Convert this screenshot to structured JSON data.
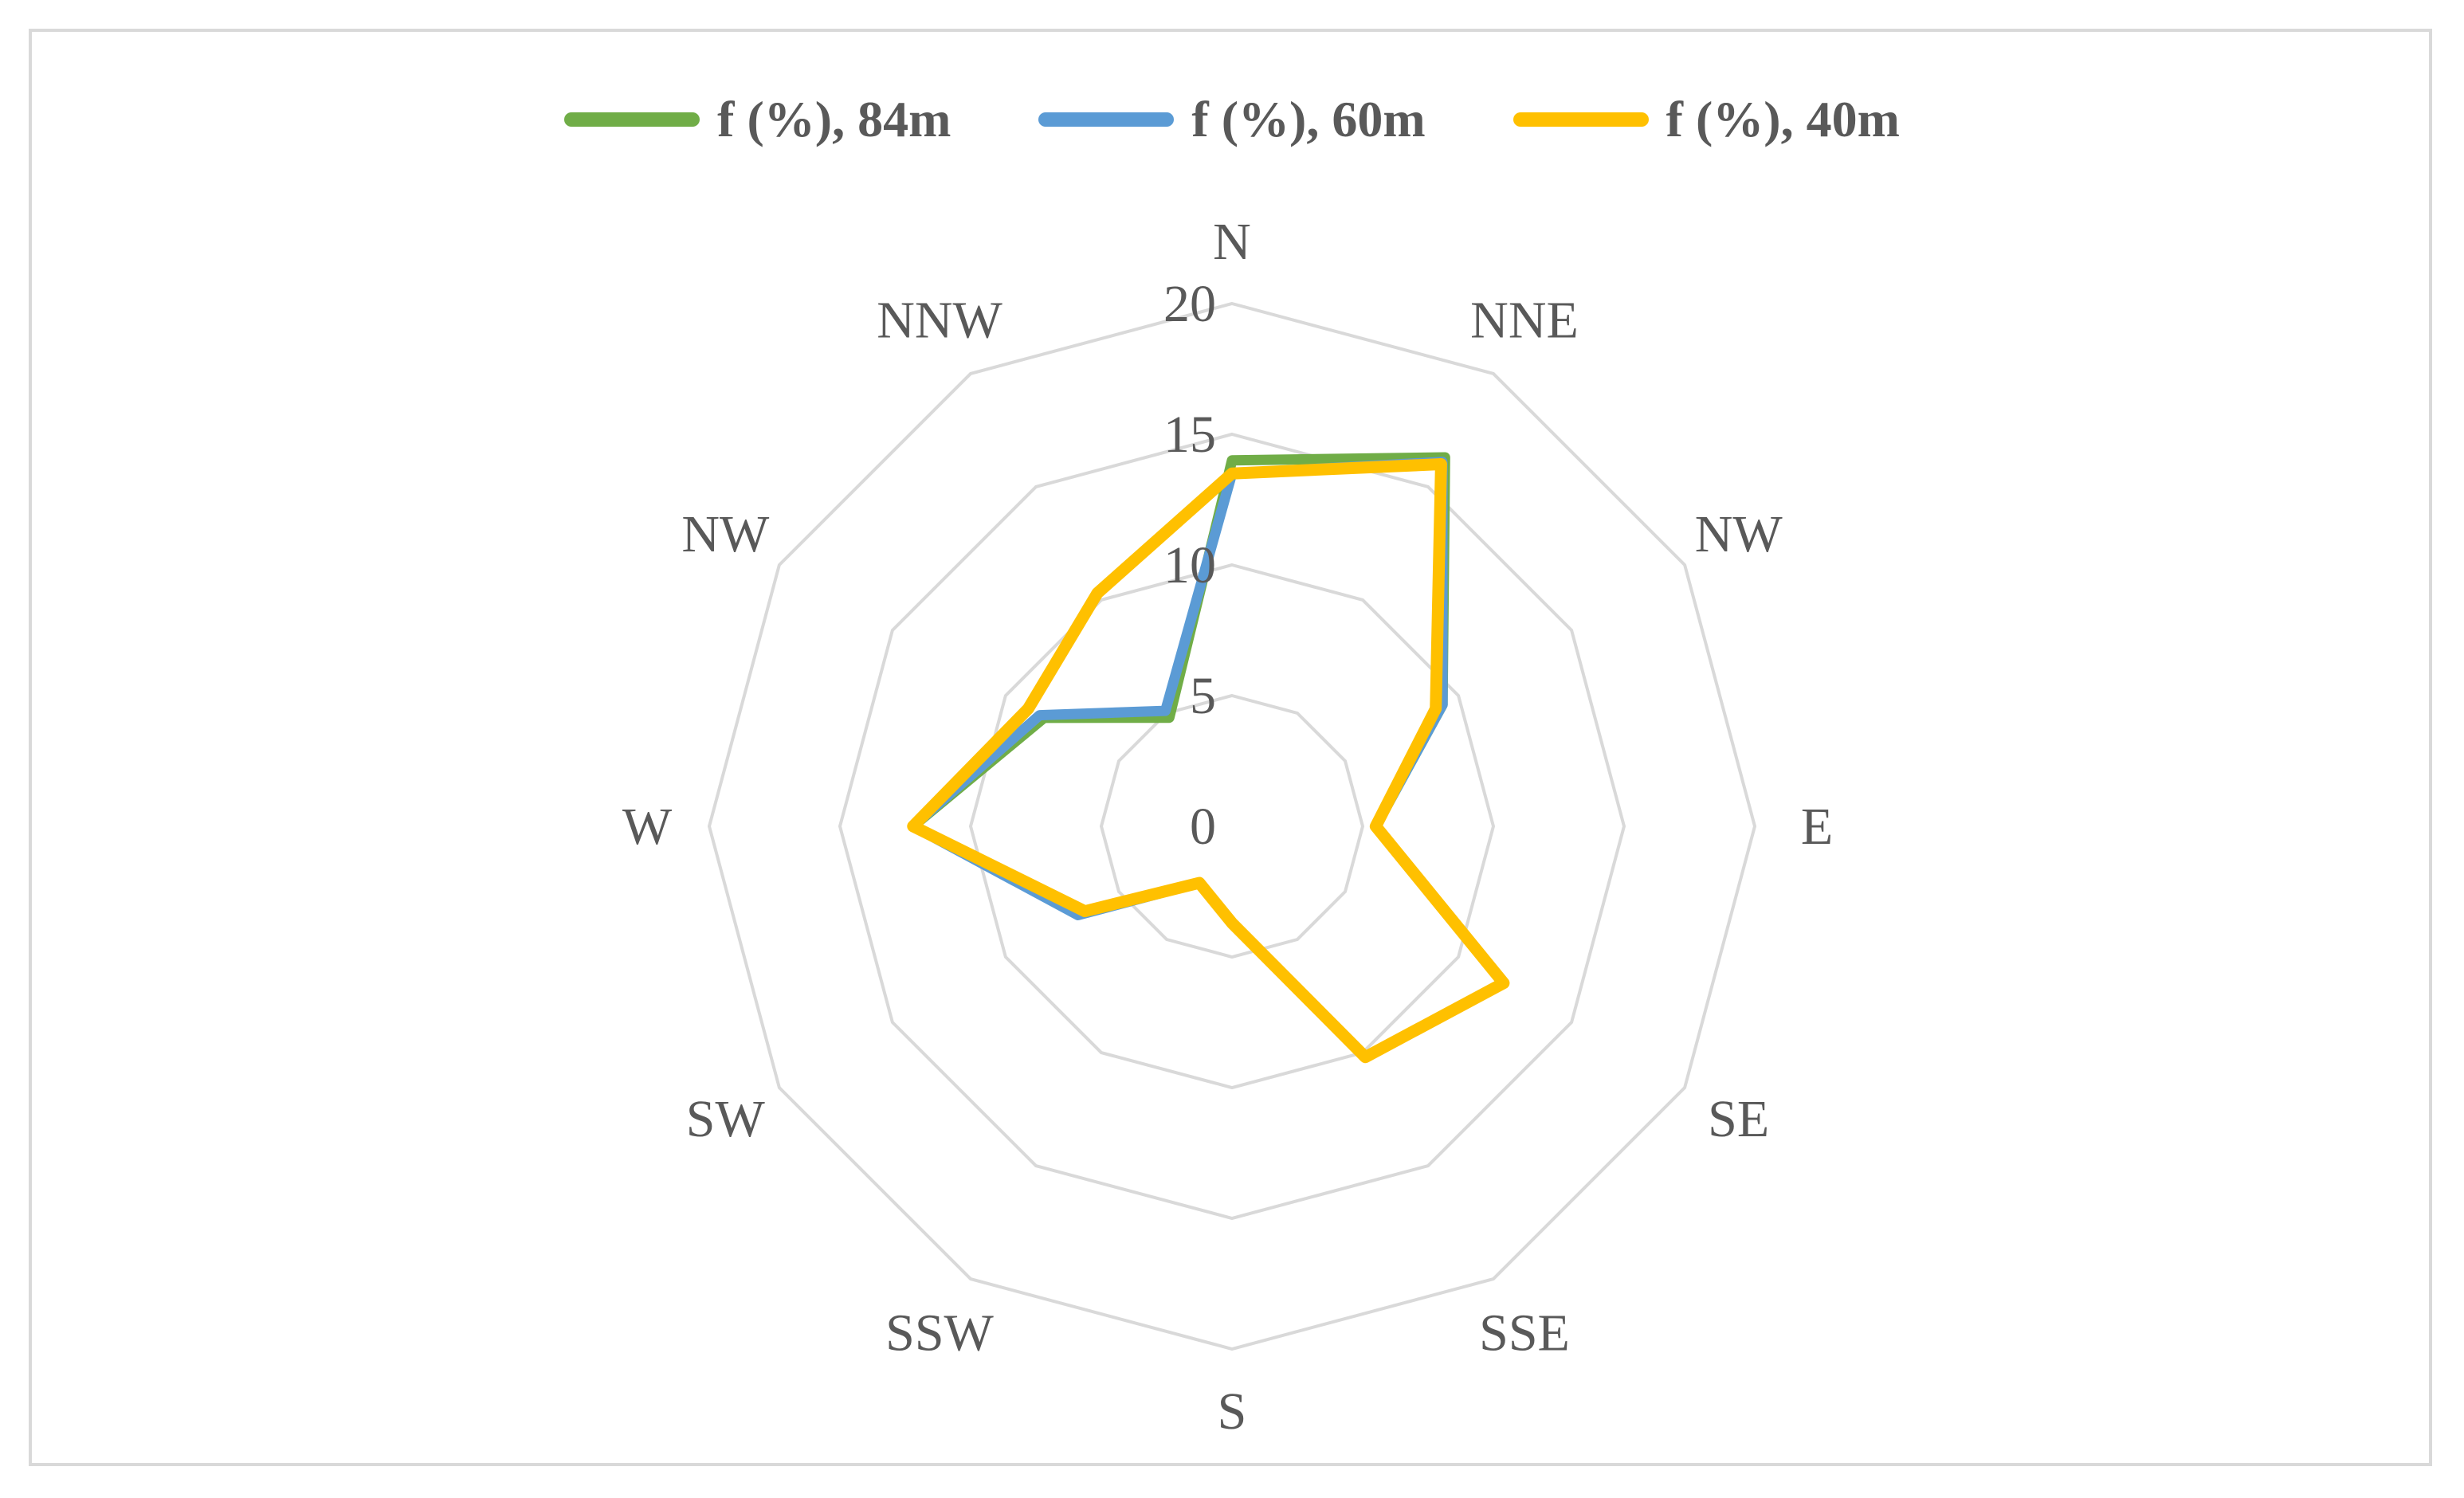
{
  "chart_data": {
    "type": "radar",
    "categories": [
      "N",
      "NNE",
      "NW",
      "E",
      "SE",
      "SSE",
      "S",
      "SSW",
      "SW",
      "W",
      "NW",
      "NNW"
    ],
    "rlim": [
      0,
      20
    ],
    "ticks": [
      0,
      5,
      10,
      15,
      20
    ],
    "grid": true,
    "legend": "top",
    "series": [
      {
        "name": "f (%), 84m",
        "color": "#70ad47",
        "values": [
          14,
          16.3,
          9.3,
          5.5,
          12.0,
          10.2,
          3.7,
          2.5,
          6.7,
          12.2,
          8.3,
          4.8
        ]
      },
      {
        "name": "f (%), 60m",
        "color": "#5b9bd5",
        "values": [
          13.5,
          16.1,
          9.3,
          5.5,
          12.0,
          10.2,
          3.7,
          2.5,
          6.8,
          12.2,
          8.5,
          5.1
        ]
      },
      {
        "name": "f (%), 40m",
        "color": "#ffc000",
        "values": [
          13.5,
          16.0,
          9.0,
          5.5,
          12.0,
          10.2,
          3.7,
          2.5,
          6.5,
          12.2,
          9.0,
          10.3
        ]
      }
    ]
  }
}
